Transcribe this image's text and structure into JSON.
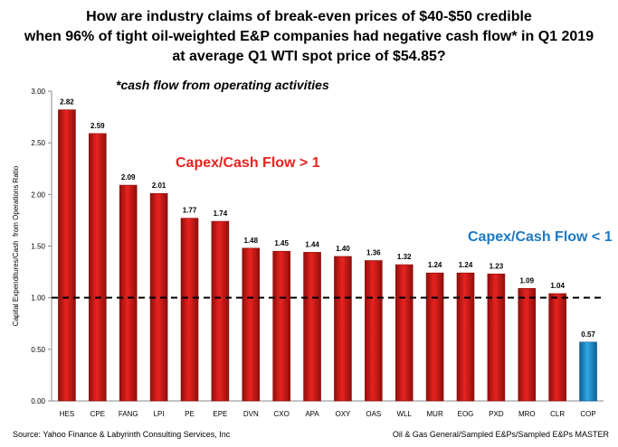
{
  "title_lines": [
    "How are industry claims of break-even prices of $40-$50 credible",
    "when 96% of tight oil-weighted E&P companies had negative cash flow* in Q1 2019",
    "at average Q1 WTI spot price of $54.85?"
  ],
  "footnote": "*cash flow from operating activities",
  "annotations": {
    "above": "Capex/Cash Flow > 1",
    "below": "Capex/Cash Flow < 1"
  },
  "source": "Source: Yahoo Finance & Labyrinth Consulting Services, Inc",
  "file_path": "Oil & Gas General/Sampled E&Ps/Sampled E&Ps MASTER",
  "colors": {
    "above_bar": "#e8231f",
    "above_bar_dark": "#8e0f0c",
    "below_bar": "#2fa8e8",
    "below_bar_dark": "#0e5f93",
    "annotation_red": "#e8231f",
    "annotation_blue": "#1f78c0"
  },
  "chart_data": {
    "type": "bar",
    "categories": [
      "HES",
      "CPE",
      "FANG",
      "LPI",
      "PE",
      "EPE",
      "DVN",
      "CXO",
      "APA",
      "OXY",
      "OAS",
      "WLL",
      "MUR",
      "EOG",
      "PXD",
      "MRO",
      "CLR",
      "COP"
    ],
    "values": [
      2.82,
      2.59,
      2.09,
      2.01,
      1.77,
      1.74,
      1.48,
      1.45,
      1.44,
      1.4,
      1.36,
      1.32,
      1.24,
      1.24,
      1.23,
      1.09,
      1.04,
      0.57
    ],
    "data_labels": [
      "2.82",
      "2.59",
      "2.09",
      "2.01",
      "1.77",
      "1.74",
      "1.48",
      "1.45",
      "1.44",
      "1.40",
      "1.36",
      "1.32",
      "1.24",
      "1.24",
      "1.23",
      "1.09",
      "1.04",
      "0.57"
    ],
    "ylabel": "Capital Expenditures/Cash  from Operations Ratio",
    "xlabel": "",
    "ylim": [
      0,
      3.0
    ],
    "yticks": [
      "0.00",
      "0.50",
      "1.00",
      "1.50",
      "2.00",
      "2.50",
      "3.00"
    ],
    "ytick_values": [
      0,
      0.5,
      1.0,
      1.5,
      2.0,
      2.5,
      3.0
    ],
    "reference_line": 1.0,
    "grid": false
  }
}
